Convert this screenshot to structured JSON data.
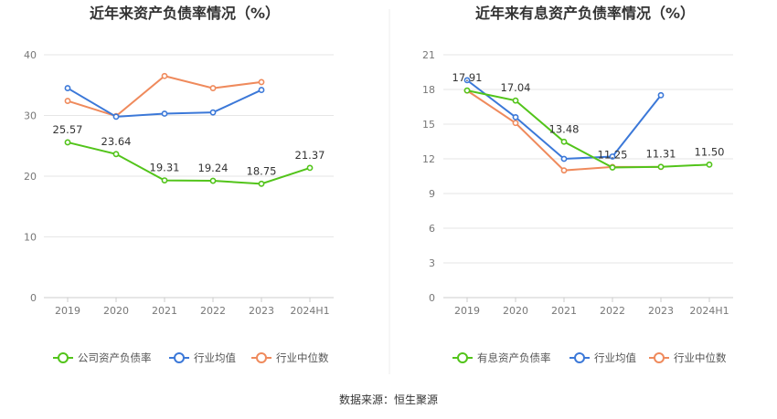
{
  "source": "数据来源：恒生聚源",
  "colors": {
    "company": "#52c41a",
    "avg": "#3b78d8",
    "median": "#ef8a5c",
    "grid": "#e6e6e6",
    "axis": "#cccccc"
  },
  "chart_data": [
    {
      "type": "line",
      "title": "近年来资产负债率情况（%）",
      "categories": [
        "2019",
        "2020",
        "2021",
        "2022",
        "2023",
        "2024H1"
      ],
      "ylim": [
        0,
        40
      ],
      "yticks": [
        "0",
        "10",
        "20",
        "30",
        "40"
      ],
      "grid": true,
      "legend": "bottom",
      "series": [
        {
          "name": "公司资产负债率",
          "values": [
            25.57,
            23.64,
            19.31,
            19.24,
            18.75,
            21.37
          ],
          "labels": [
            "25.57",
            "23.64",
            "19.31",
            "19.24",
            "18.75",
            "21.37"
          ]
        },
        {
          "name": "行业均值",
          "values": [
            34.5,
            29.8,
            30.3,
            30.5,
            34.2,
            null
          ]
        },
        {
          "name": "行业中位数",
          "values": [
            32.4,
            29.9,
            36.5,
            34.5,
            35.5,
            null
          ]
        }
      ]
    },
    {
      "type": "line",
      "title": "近年来有息资产负债率情况（%）",
      "categories": [
        "2019",
        "2020",
        "2021",
        "2022",
        "2023",
        "2024H1"
      ],
      "ylim": [
        0,
        21
      ],
      "yticks": [
        "0",
        "3",
        "6",
        "9",
        "12",
        "15",
        "18",
        "21"
      ],
      "grid": true,
      "legend": "bottom",
      "series": [
        {
          "name": "有息资产负债率",
          "values": [
            17.91,
            17.04,
            13.48,
            11.25,
            11.31,
            11.5
          ],
          "labels": [
            "17.91",
            "17.04",
            "13.48",
            "11.25",
            "11.31",
            "11.50"
          ]
        },
        {
          "name": "行业均值",
          "values": [
            18.8,
            15.6,
            12.0,
            12.2,
            17.5,
            null
          ]
        },
        {
          "name": "行业中位数",
          "values": [
            17.9,
            15.1,
            11.0,
            11.3,
            11.3,
            null
          ]
        }
      ]
    }
  ]
}
